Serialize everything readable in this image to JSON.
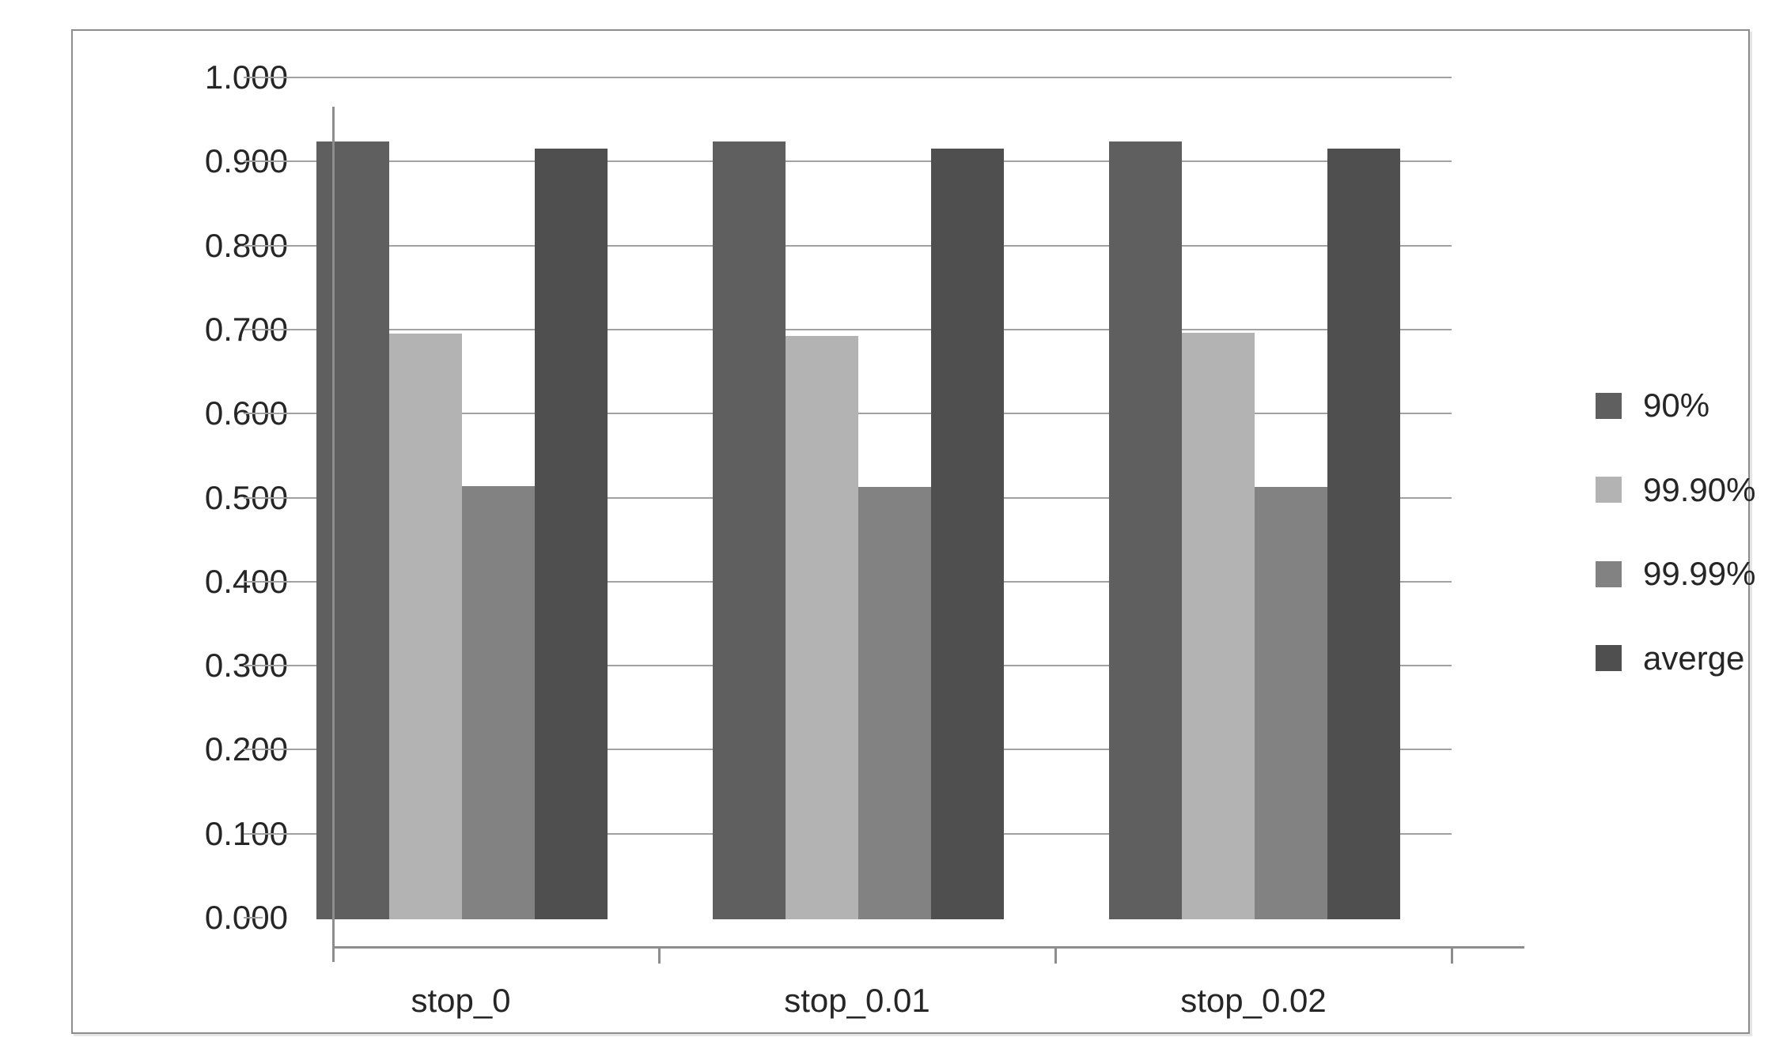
{
  "chart_data": {
    "type": "bar",
    "title": "",
    "categories": [
      "stop_0",
      "stop_0.01",
      "stop_0.02"
    ],
    "series": [
      {
        "name": "90%",
        "color": "#5f5f5f",
        "values": [
          0.924,
          0.924,
          0.924
        ]
      },
      {
        "name": "99.90%",
        "color": "#b3b3b3",
        "values": [
          0.695,
          0.692,
          0.696
        ]
      },
      {
        "name": "99.99%",
        "color": "#828282",
        "values": [
          0.514,
          0.513,
          0.513
        ]
      },
      {
        "name": "averge",
        "color": "#4f4f4f",
        "values": [
          0.915,
          0.915,
          0.915
        ]
      }
    ],
    "y_axis": {
      "min": 0.0,
      "max": 1.0,
      "step": 0.1,
      "tick_format_decimals": 3,
      "tick_labels": [
        "0.000",
        "0.100",
        "0.200",
        "0.300",
        "0.400",
        "0.500",
        "0.600",
        "0.700",
        "0.800",
        "0.900",
        "1.000"
      ]
    },
    "xlabel": "",
    "ylabel": "",
    "grid": true,
    "legend_position": "right"
  }
}
